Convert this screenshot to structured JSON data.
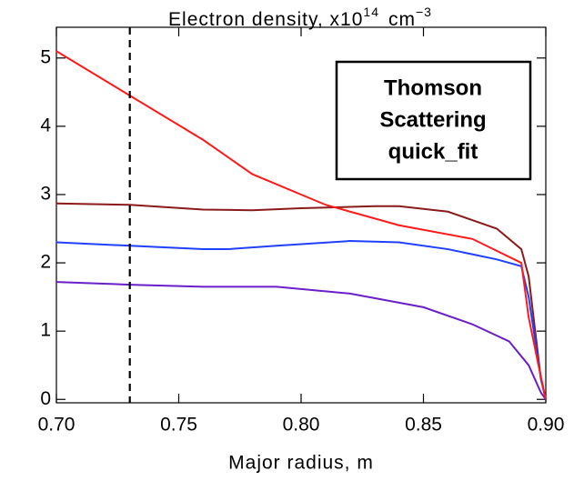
{
  "chart_data": {
    "type": "line",
    "title": "Electron density, x10",
    "title_exponent": "14",
    "title_unit": "cm",
    "title_unit_exponent": "−3",
    "x_label": "Major radius, m",
    "annotation": [
      "Thomson",
      "Scattering",
      "quick_fit"
    ],
    "vline": 0.73,
    "xlim": [
      0.7,
      0.9
    ],
    "ylim": [
      -0.05,
      5.45
    ],
    "xticks": [
      {
        "value": 0.7,
        "label": "0.70"
      },
      0.75,
      {
        "value": 0.8,
        "label": "0.80"
      },
      0.85,
      {
        "value": 0.9,
        "label": "0.90"
      }
    ],
    "yticks": [
      0,
      1,
      2,
      3,
      4,
      5
    ],
    "series": [
      {
        "color": "#8b1a1a",
        "x": [
          0.7,
          0.73,
          0.76,
          0.78,
          0.8,
          0.83,
          0.84,
          0.86,
          0.88,
          0.89,
          0.893,
          0.898,
          0.9
        ],
        "values": [
          2.87,
          2.85,
          2.78,
          2.77,
          2.8,
          2.83,
          2.83,
          2.75,
          2.5,
          2.2,
          1.8,
          0.3,
          0
        ]
      },
      {
        "color": "#2040ff",
        "x": [
          0.7,
          0.73,
          0.76,
          0.77,
          0.79,
          0.82,
          0.84,
          0.86,
          0.88,
          0.89,
          0.893,
          0.898,
          0.9
        ],
        "values": [
          2.3,
          2.25,
          2.2,
          2.2,
          2.25,
          2.32,
          2.3,
          2.2,
          2.05,
          1.95,
          1.5,
          0.3,
          0
        ]
      },
      {
        "color": "#6a1fc8",
        "x": [
          0.7,
          0.73,
          0.76,
          0.79,
          0.82,
          0.85,
          0.87,
          0.885,
          0.893,
          0.898,
          0.9
        ],
        "values": [
          1.72,
          1.68,
          1.65,
          1.65,
          1.55,
          1.35,
          1.1,
          0.85,
          0.5,
          0.1,
          0
        ]
      },
      {
        "color": "#ff1a1a",
        "x": [
          0.7,
          0.73,
          0.76,
          0.78,
          0.81,
          0.84,
          0.87,
          0.89,
          0.893,
          0.897,
          0.9
        ],
        "values": [
          5.1,
          4.45,
          3.8,
          3.3,
          2.85,
          2.55,
          2.35,
          2.0,
          1.2,
          0.5,
          0
        ]
      }
    ]
  }
}
